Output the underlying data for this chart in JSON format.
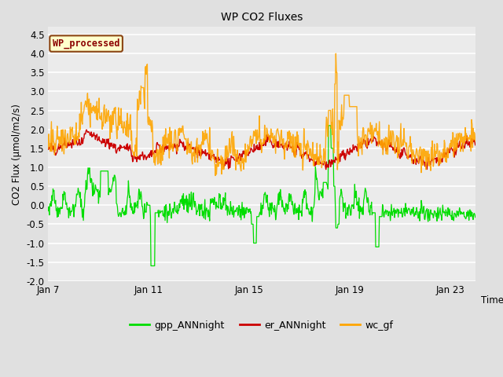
{
  "title": "WP CO2 Fluxes",
  "xlabel": "Time",
  "ylabel": "CO2 Flux (μmol/m2/s)",
  "ylim": [
    -2.0,
    4.7
  ],
  "yticks": [
    -2.0,
    -1.5,
    -1.0,
    -0.5,
    0.0,
    0.5,
    1.0,
    1.5,
    2.0,
    2.5,
    3.0,
    3.5,
    4.0,
    4.5
  ],
  "xtick_labels": [
    "Jan 7",
    "Jan 11",
    "Jan 15",
    "Jan 19",
    "Jan 23"
  ],
  "xtick_positions": [
    0,
    4,
    8,
    12,
    16
  ],
  "annotation_text": "WP_processed",
  "annotation_color": "#8B0000",
  "annotation_bg": "#FFFFCC",
  "annotation_border": "#8B4513",
  "legend_entries": [
    "gpp_ANNnight",
    "er_ANNnight",
    "wc_gf"
  ],
  "line_colors": [
    "#00DD00",
    "#CC0000",
    "#FFA500"
  ],
  "fig_bg_color": "#E0E0E0",
  "plot_bg_color": "#EBEBEB",
  "grid_color": "#FFFFFF",
  "n_days": 17,
  "seed": 42
}
